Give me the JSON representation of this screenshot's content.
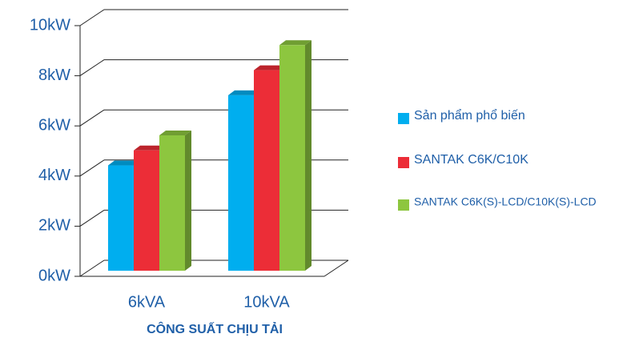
{
  "chart_data": {
    "type": "bar",
    "x_label": "CÔNG SUẤT CHỊU TẢI",
    "categories": [
      "6kVA",
      "10kVA"
    ],
    "series": [
      {
        "name": "Sản phẩm phổ biến",
        "color": "#00aeef",
        "values": [
          4.2,
          7
        ]
      },
      {
        "name": "SANTAK C6K/C10K",
        "color": "#ec2d37",
        "values": [
          4.8,
          8
        ]
      },
      {
        "name": "SANTAK C6K(S)-LCD/C10K(S)-LCD",
        "color": "#8dc63f",
        "values": [
          5.4,
          9
        ]
      }
    ],
    "ylim": [
      0,
      10
    ],
    "yticks": [
      {
        "value": 0,
        "label": "0kW"
      },
      {
        "value": 2,
        "label": "2kW"
      },
      {
        "value": 4,
        "label": "4kW"
      },
      {
        "value": 6,
        "label": "6kW"
      },
      {
        "value": 8,
        "label": "8kW"
      },
      {
        "value": 10,
        "label": "10kW"
      }
    ],
    "grid": true,
    "legend": "right"
  }
}
